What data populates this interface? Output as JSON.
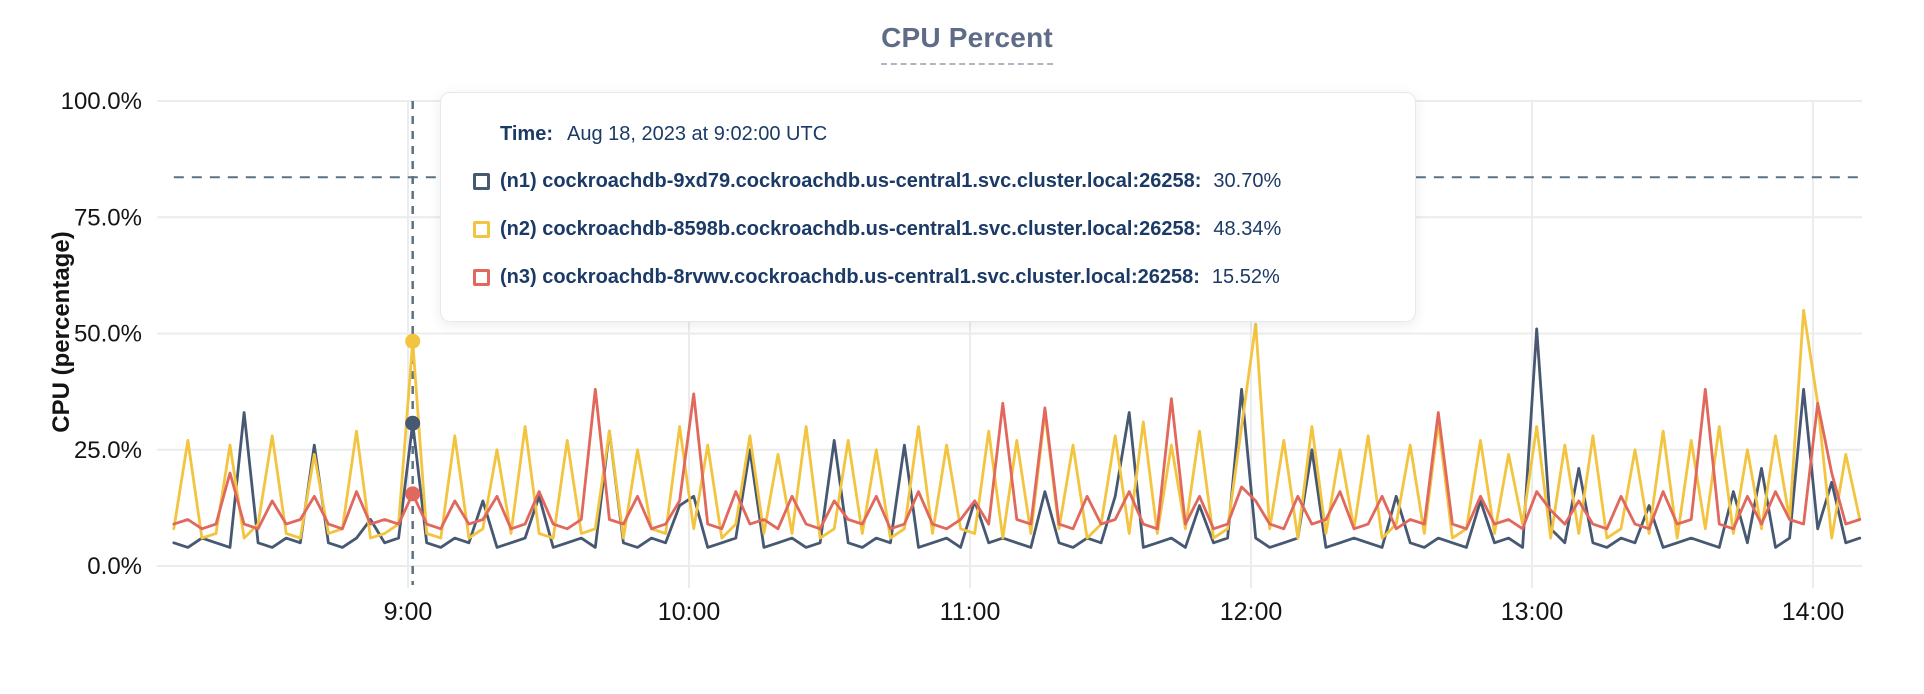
{
  "page": {
    "title": "CPU Percent"
  },
  "colors": {
    "title": "#5F6C87",
    "axis_text": "#141414",
    "gridline": "#ECECEC",
    "guide_dash": "#5B7282",
    "tooltip_text": "#1B3A66",
    "n1": "#475872",
    "n2": "#F3C43F",
    "n3": "#E0685C"
  },
  "tooltip": {
    "time_label": "Time:",
    "time_value": "Aug 18, 2023 at 9:02:00 UTC",
    "series": [
      {
        "label": "(n1) cockroachdb-9xd79.cockroachdb.us-central1.svc.cluster.local:26258:",
        "value": "30.70%",
        "color": "#475872"
      },
      {
        "label": "(n2) cockroachdb-8598b.cockroachdb.us-central1.svc.cluster.local:26258:",
        "value": "48.34%",
        "color": "#F3C43F"
      },
      {
        "label": "(n3) cockroachdb-8rvwv.cockroachdb.us-central1.svc.cluster.local:26258:",
        "value": "15.52%",
        "color": "#E0685C"
      }
    ]
  },
  "chart_data": {
    "type": "line",
    "title": "CPU Percent",
    "xlabel": "",
    "ylabel": "CPU (percentage)",
    "ylim": [
      0,
      100
    ],
    "grid": true,
    "legend_position": "tooltip",
    "x_start_time": "8:10",
    "x_step_minutes": 3,
    "x_tick_labels": [
      "9:00",
      "10:00",
      "11:00",
      "12:00",
      "13:00",
      "14:00"
    ],
    "x_tick_offsets_minutes": [
      50,
      110,
      170,
      230,
      290,
      350
    ],
    "y_tick_values": [
      0,
      25,
      50,
      75,
      100
    ],
    "y_tick_labels": [
      "0.0%",
      "25.0%",
      "50.0%",
      "75.0%",
      "100.0%"
    ],
    "threshold_line_pct": 83.6,
    "hover": {
      "index": 17,
      "time": "9:02",
      "values_pct": [
        30.7,
        48.34,
        15.52
      ]
    },
    "series": [
      {
        "name": "n1",
        "host": "cockroachdb-9xd79.cockroachdb.us-central1.svc.cluster.local:26258",
        "color": "#475872",
        "values": [
          5,
          4,
          6,
          5,
          4,
          33,
          5,
          4,
          6,
          5,
          26,
          5,
          4,
          6,
          10,
          5,
          6,
          30.7,
          5,
          4,
          6,
          5,
          14,
          4,
          5,
          6,
          15,
          4,
          5,
          6,
          4,
          29,
          5,
          4,
          6,
          5,
          13,
          15,
          4,
          5,
          6,
          25,
          4,
          5,
          6,
          4,
          5,
          27,
          5,
          4,
          6,
          5,
          26,
          4,
          5,
          6,
          4,
          14,
          5,
          6,
          5,
          4,
          16,
          5,
          4,
          6,
          5,
          15,
          33,
          4,
          5,
          6,
          4,
          13,
          5,
          6,
          38,
          6,
          4,
          5,
          6,
          25,
          4,
          5,
          6,
          5,
          4,
          15,
          5,
          4,
          6,
          5,
          4,
          14,
          5,
          6,
          4,
          51,
          8,
          5,
          21,
          5,
          4,
          6,
          5,
          13,
          4,
          5,
          6,
          5,
          4,
          16,
          5,
          21,
          4,
          6,
          38,
          8,
          18,
          5,
          6
        ]
      },
      {
        "name": "n2",
        "host": "cockroachdb-8598b.cockroachdb.us-central1.svc.cluster.local:26258",
        "color": "#F3C43F",
        "values": [
          8,
          27,
          6,
          7,
          26,
          6,
          9,
          28,
          7,
          6,
          24,
          7,
          8,
          29,
          6,
          7,
          9,
          48.34,
          7,
          6,
          28,
          6,
          8,
          25,
          7,
          30,
          7,
          6,
          27,
          7,
          8,
          29,
          6,
          25,
          8,
          7,
          30,
          8,
          26,
          6,
          9,
          28,
          7,
          24,
          7,
          30,
          6,
          8,
          27,
          7,
          25,
          6,
          8,
          30,
          7,
          26,
          8,
          7,
          29,
          6,
          27,
          7,
          33,
          8,
          26,
          6,
          9,
          28,
          7,
          31,
          7,
          26,
          8,
          29,
          6,
          8,
          30,
          52,
          8,
          27,
          6,
          30,
          7,
          25,
          8,
          28,
          6,
          9,
          26,
          7,
          31,
          6,
          8,
          27,
          7,
          24,
          9,
          30,
          6,
          26,
          7,
          28,
          6,
          8,
          25,
          7,
          29,
          6,
          27,
          8,
          30,
          7,
          25,
          8,
          28,
          10,
          55,
          35,
          6,
          24,
          10
        ]
      },
      {
        "name": "n3",
        "host": "cockroachdb-8rvwv.cockroachdb.us-central1.svc.cluster.local:26258",
        "color": "#E0685C",
        "values": [
          9,
          10,
          8,
          9,
          20,
          9,
          8,
          14,
          9,
          10,
          15,
          9,
          8,
          16,
          9,
          10,
          9,
          15.52,
          9,
          8,
          14,
          9,
          10,
          15,
          8,
          9,
          16,
          9,
          8,
          10,
          38,
          10,
          9,
          15,
          8,
          9,
          14,
          37,
          9,
          8,
          16,
          9,
          10,
          8,
          15,
          9,
          8,
          14,
          10,
          9,
          15,
          8,
          9,
          16,
          9,
          8,
          10,
          14,
          9,
          35,
          10,
          9,
          34,
          9,
          8,
          15,
          9,
          10,
          16,
          9,
          8,
          36,
          9,
          15,
          8,
          9,
          17,
          14,
          9,
          8,
          15,
          9,
          10,
          16,
          8,
          9,
          15,
          8,
          10,
          9,
          33,
          9,
          8,
          15,
          9,
          10,
          8,
          16,
          12,
          9,
          14,
          9,
          8,
          15,
          9,
          8,
          16,
          9,
          10,
          38,
          9,
          8,
          15,
          9,
          16,
          10,
          9,
          35,
          20,
          9,
          10
        ]
      }
    ]
  }
}
